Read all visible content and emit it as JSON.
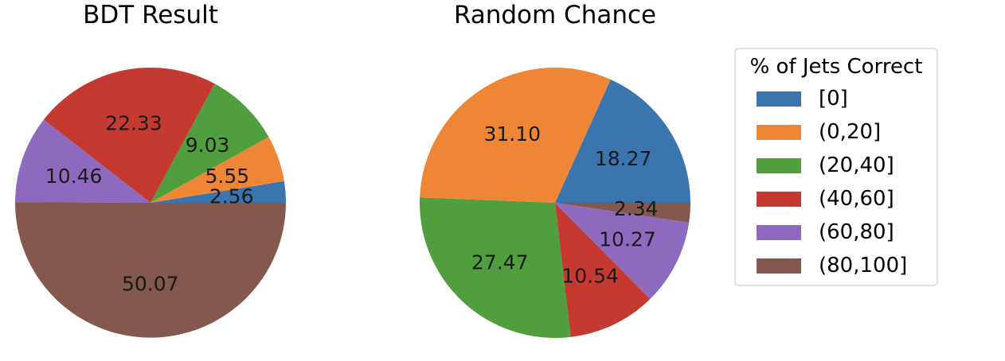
{
  "chart_data": [
    {
      "type": "pie",
      "title": "BDT Result",
      "categories": [
        "[0]",
        "(0,20]",
        "(20,40]",
        "(40,60]",
        "(60,80]",
        "(80,100]"
      ],
      "values": [
        2.56,
        5.55,
        9.03,
        22.33,
        10.46,
        50.07
      ],
      "data_labels": [
        "2.56",
        "5.55",
        "9.03",
        "22.33",
        "10.46",
        "50.07"
      ],
      "start_angle": 0,
      "direction": "counterclockwise"
    },
    {
      "type": "pie",
      "title": "Random Chance",
      "categories": [
        "[0]",
        "(0,20]",
        "(20,40]",
        "(40,60]",
        "(60,80]",
        "(80,100]"
      ],
      "values": [
        18.27,
        31.1,
        27.47,
        10.54,
        10.27,
        2.34
      ],
      "data_labels": [
        "18.27",
        "31.10",
        "27.47",
        "10.54",
        "10.27",
        "2.34"
      ],
      "start_angle": 0,
      "direction": "counterclockwise"
    }
  ],
  "legend": {
    "title": "% of Jets Correct",
    "placement": "right",
    "entries": [
      {
        "label": "[0]",
        "color": "#3a75b0"
      },
      {
        "label": "(0,20]",
        "color": "#ee8636"
      },
      {
        "label": "(20,40]",
        "color": "#519e3e"
      },
      {
        "label": "(40,60]",
        "color": "#c43a31"
      },
      {
        "label": "(60,80]",
        "color": "#8d6ac0"
      },
      {
        "label": "(80,100]",
        "color": "#84584d"
      }
    ]
  }
}
